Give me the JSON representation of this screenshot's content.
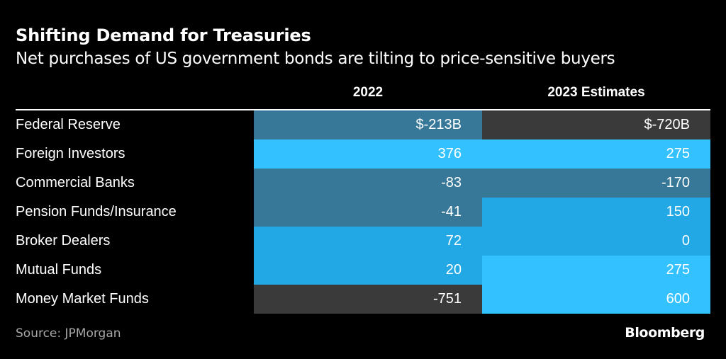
{
  "title": "Shifting Demand for Treasuries",
  "subtitle": "Net purchases of US government bonds are tilting to price-sensitive buyers",
  "source": "Source: JPMorgan",
  "brand": "Bloomberg",
  "colors": {
    "background": "#000000",
    "negative_large": "#3a3a3a",
    "negative": "#377899",
    "low_positive": "#22a8e4",
    "high_positive": "#33c2ff"
  },
  "chart_data": {
    "type": "table",
    "title": "Shifting Demand for Treasuries",
    "subtitle": "Net purchases of US government bonds are tilting to price-sensitive buyers",
    "columns": [
      "2022",
      "2023 Estimates"
    ],
    "unit": "$B",
    "rows": [
      {
        "label": "Federal Reserve",
        "values": [
          -213,
          -720
        ],
        "display": [
          "$-213B",
          "$-720B"
        ],
        "colors": [
          "#377899",
          "#3a3a3a"
        ]
      },
      {
        "label": "Foreign Investors",
        "values": [
          376,
          275
        ],
        "display": [
          "376",
          "275"
        ],
        "colors": [
          "#33c2ff",
          "#33c2ff"
        ]
      },
      {
        "label": "Commercial Banks",
        "values": [
          -83,
          -170
        ],
        "display": [
          "-83",
          "-170"
        ],
        "colors": [
          "#377899",
          "#377899"
        ]
      },
      {
        "label": "Pension Funds/Insurance",
        "values": [
          -41,
          150
        ],
        "display": [
          "-41",
          "150"
        ],
        "colors": [
          "#377899",
          "#22a8e4"
        ]
      },
      {
        "label": "Broker Dealers",
        "values": [
          72,
          0
        ],
        "display": [
          "72",
          "0"
        ],
        "colors": [
          "#22a8e4",
          "#22a8e4"
        ]
      },
      {
        "label": "Mutual Funds",
        "values": [
          20,
          275
        ],
        "display": [
          "20",
          "275"
        ],
        "colors": [
          "#22a8e4",
          "#33c2ff"
        ]
      },
      {
        "label": "Money Market Funds",
        "values": [
          -751,
          600
        ],
        "display": [
          "-751",
          "600"
        ],
        "colors": [
          "#3a3a3a",
          "#33c2ff"
        ]
      }
    ]
  }
}
